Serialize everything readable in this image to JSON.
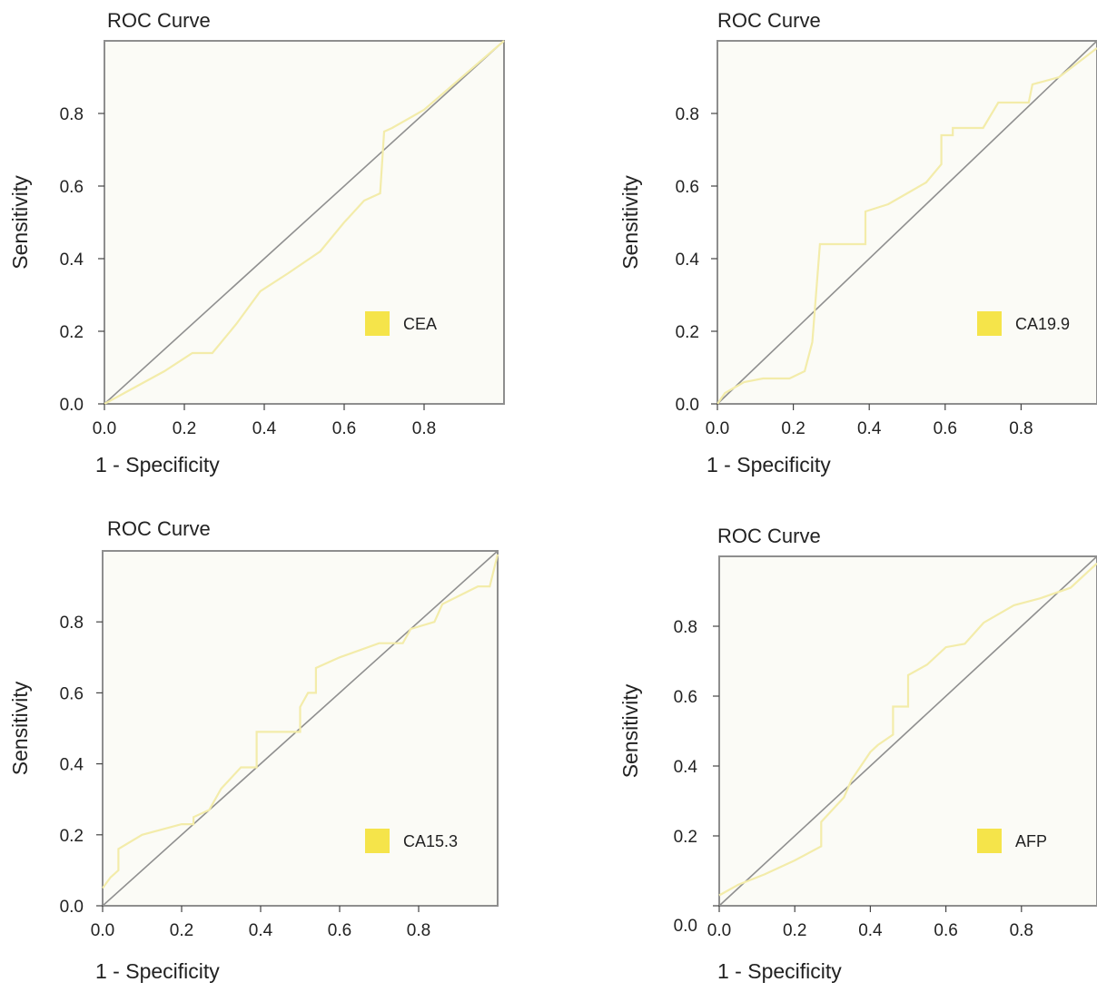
{
  "chart_data": [
    {
      "type": "line",
      "title": "ROC Curve",
      "xlabel": "1 - Specificity",
      "ylabel": "Sensitivity",
      "xlim": [
        0,
        1
      ],
      "ylim": [
        0,
        1
      ],
      "xticks": [
        "0.0",
        "0.2",
        "0.4",
        "0.6",
        "0.8"
      ],
      "yticks": [
        "0.0",
        "0.2",
        "0.4",
        "0.6",
        "0.8"
      ],
      "legend": "CEA",
      "legend_color": "#f5e44a",
      "curve_color": "#f3ecaa",
      "reference_color": "#8f8f8f",
      "series": [
        {
          "name": "CEA",
          "x": [
            0,
            0.05,
            0.1,
            0.15,
            0.22,
            0.27,
            0.33,
            0.39,
            0.46,
            0.54,
            0.6,
            0.65,
            0.69,
            0.7,
            0.72,
            0.8,
            1.0
          ],
          "y": [
            0,
            0.03,
            0.06,
            0.09,
            0.14,
            0.14,
            0.22,
            0.31,
            0.36,
            0.42,
            0.5,
            0.56,
            0.58,
            0.75,
            0.76,
            0.81,
            1.0
          ]
        }
      ]
    },
    {
      "type": "line",
      "title": "ROC Curve",
      "xlabel": "1 - Specificity",
      "ylabel": "Sensitivity",
      "xlim": [
        0,
        1
      ],
      "ylim": [
        0,
        1
      ],
      "xticks": [
        "0.0",
        "0.2",
        "0.4",
        "0.6",
        "0.8"
      ],
      "yticks": [
        "0.0",
        "0.2",
        "0.4",
        "0.6",
        "0.8"
      ],
      "legend": "CA19.9",
      "legend_color": "#f5e44a",
      "curve_color": "#f3ecaa",
      "reference_color": "#8f8f8f",
      "series": [
        {
          "name": "CA19.9",
          "x": [
            0,
            0.02,
            0.07,
            0.12,
            0.19,
            0.23,
            0.25,
            0.27,
            0.3,
            0.35,
            0.39,
            0.39,
            0.45,
            0.5,
            0.55,
            0.59,
            0.59,
            0.62,
            0.62,
            0.7,
            0.74,
            0.82,
            0.83,
            0.9,
            1.0
          ],
          "y": [
            0,
            0.03,
            0.06,
            0.07,
            0.07,
            0.09,
            0.17,
            0.44,
            0.44,
            0.44,
            0.44,
            0.53,
            0.55,
            0.58,
            0.61,
            0.66,
            0.74,
            0.74,
            0.76,
            0.76,
            0.83,
            0.83,
            0.88,
            0.9,
            0.98
          ]
        }
      ]
    },
    {
      "type": "line",
      "title": "ROC Curve",
      "xlabel": "1 - Specificity",
      "ylabel": "Sensitivity",
      "xlim": [
        0,
        1
      ],
      "ylim": [
        0,
        1
      ],
      "xticks": [
        "0.0",
        "0.2",
        "0.4",
        "0.6",
        "0.8"
      ],
      "yticks": [
        "0.0",
        "0.2",
        "0.4",
        "0.6",
        "0.8"
      ],
      "legend": "CA15.3",
      "legend_color": "#f5e44a",
      "curve_color": "#f3ecaa",
      "reference_color": "#8f8f8f",
      "series": [
        {
          "name": "CA15.3",
          "x": [
            0,
            0.02,
            0.04,
            0.04,
            0.1,
            0.2,
            0.23,
            0.23,
            0.27,
            0.3,
            0.35,
            0.39,
            0.39,
            0.5,
            0.5,
            0.52,
            0.54,
            0.54,
            0.6,
            0.7,
            0.76,
            0.78,
            0.84,
            0.86,
            0.95,
            0.98,
            1.0
          ],
          "y": [
            0.05,
            0.08,
            0.1,
            0.16,
            0.2,
            0.23,
            0.23,
            0.25,
            0.27,
            0.33,
            0.39,
            0.39,
            0.49,
            0.49,
            0.56,
            0.6,
            0.6,
            0.67,
            0.7,
            0.74,
            0.74,
            0.78,
            0.8,
            0.85,
            0.9,
            0.9,
            0.99
          ]
        }
      ]
    },
    {
      "type": "line",
      "title": "ROC Curve",
      "xlabel": "1 - Specificity",
      "ylabel": "Sensitivity",
      "xlim": [
        0,
        1
      ],
      "ylim": [
        0,
        1
      ],
      "xticks": [
        "0.0",
        "0.2",
        "0.4",
        "0.6",
        "0.8"
      ],
      "yticks": [
        "0.0",
        "0.2",
        "0.4",
        "0.6",
        "0.8"
      ],
      "ytick_zero_offset": true,
      "legend": "AFP",
      "legend_color": "#f5e44a",
      "curve_color": "#f3ecaa",
      "reference_color": "#8f8f8f",
      "series": [
        {
          "name": "AFP",
          "x": [
            0,
            0.05,
            0.12,
            0.2,
            0.27,
            0.27,
            0.33,
            0.35,
            0.4,
            0.42,
            0.46,
            0.46,
            0.5,
            0.5,
            0.55,
            0.6,
            0.65,
            0.7,
            0.78,
            0.85,
            0.93,
            1.0
          ],
          "y": [
            0.03,
            0.06,
            0.09,
            0.13,
            0.17,
            0.24,
            0.31,
            0.36,
            0.44,
            0.46,
            0.49,
            0.57,
            0.57,
            0.66,
            0.69,
            0.74,
            0.75,
            0.81,
            0.86,
            0.88,
            0.91,
            0.98
          ]
        }
      ]
    }
  ]
}
